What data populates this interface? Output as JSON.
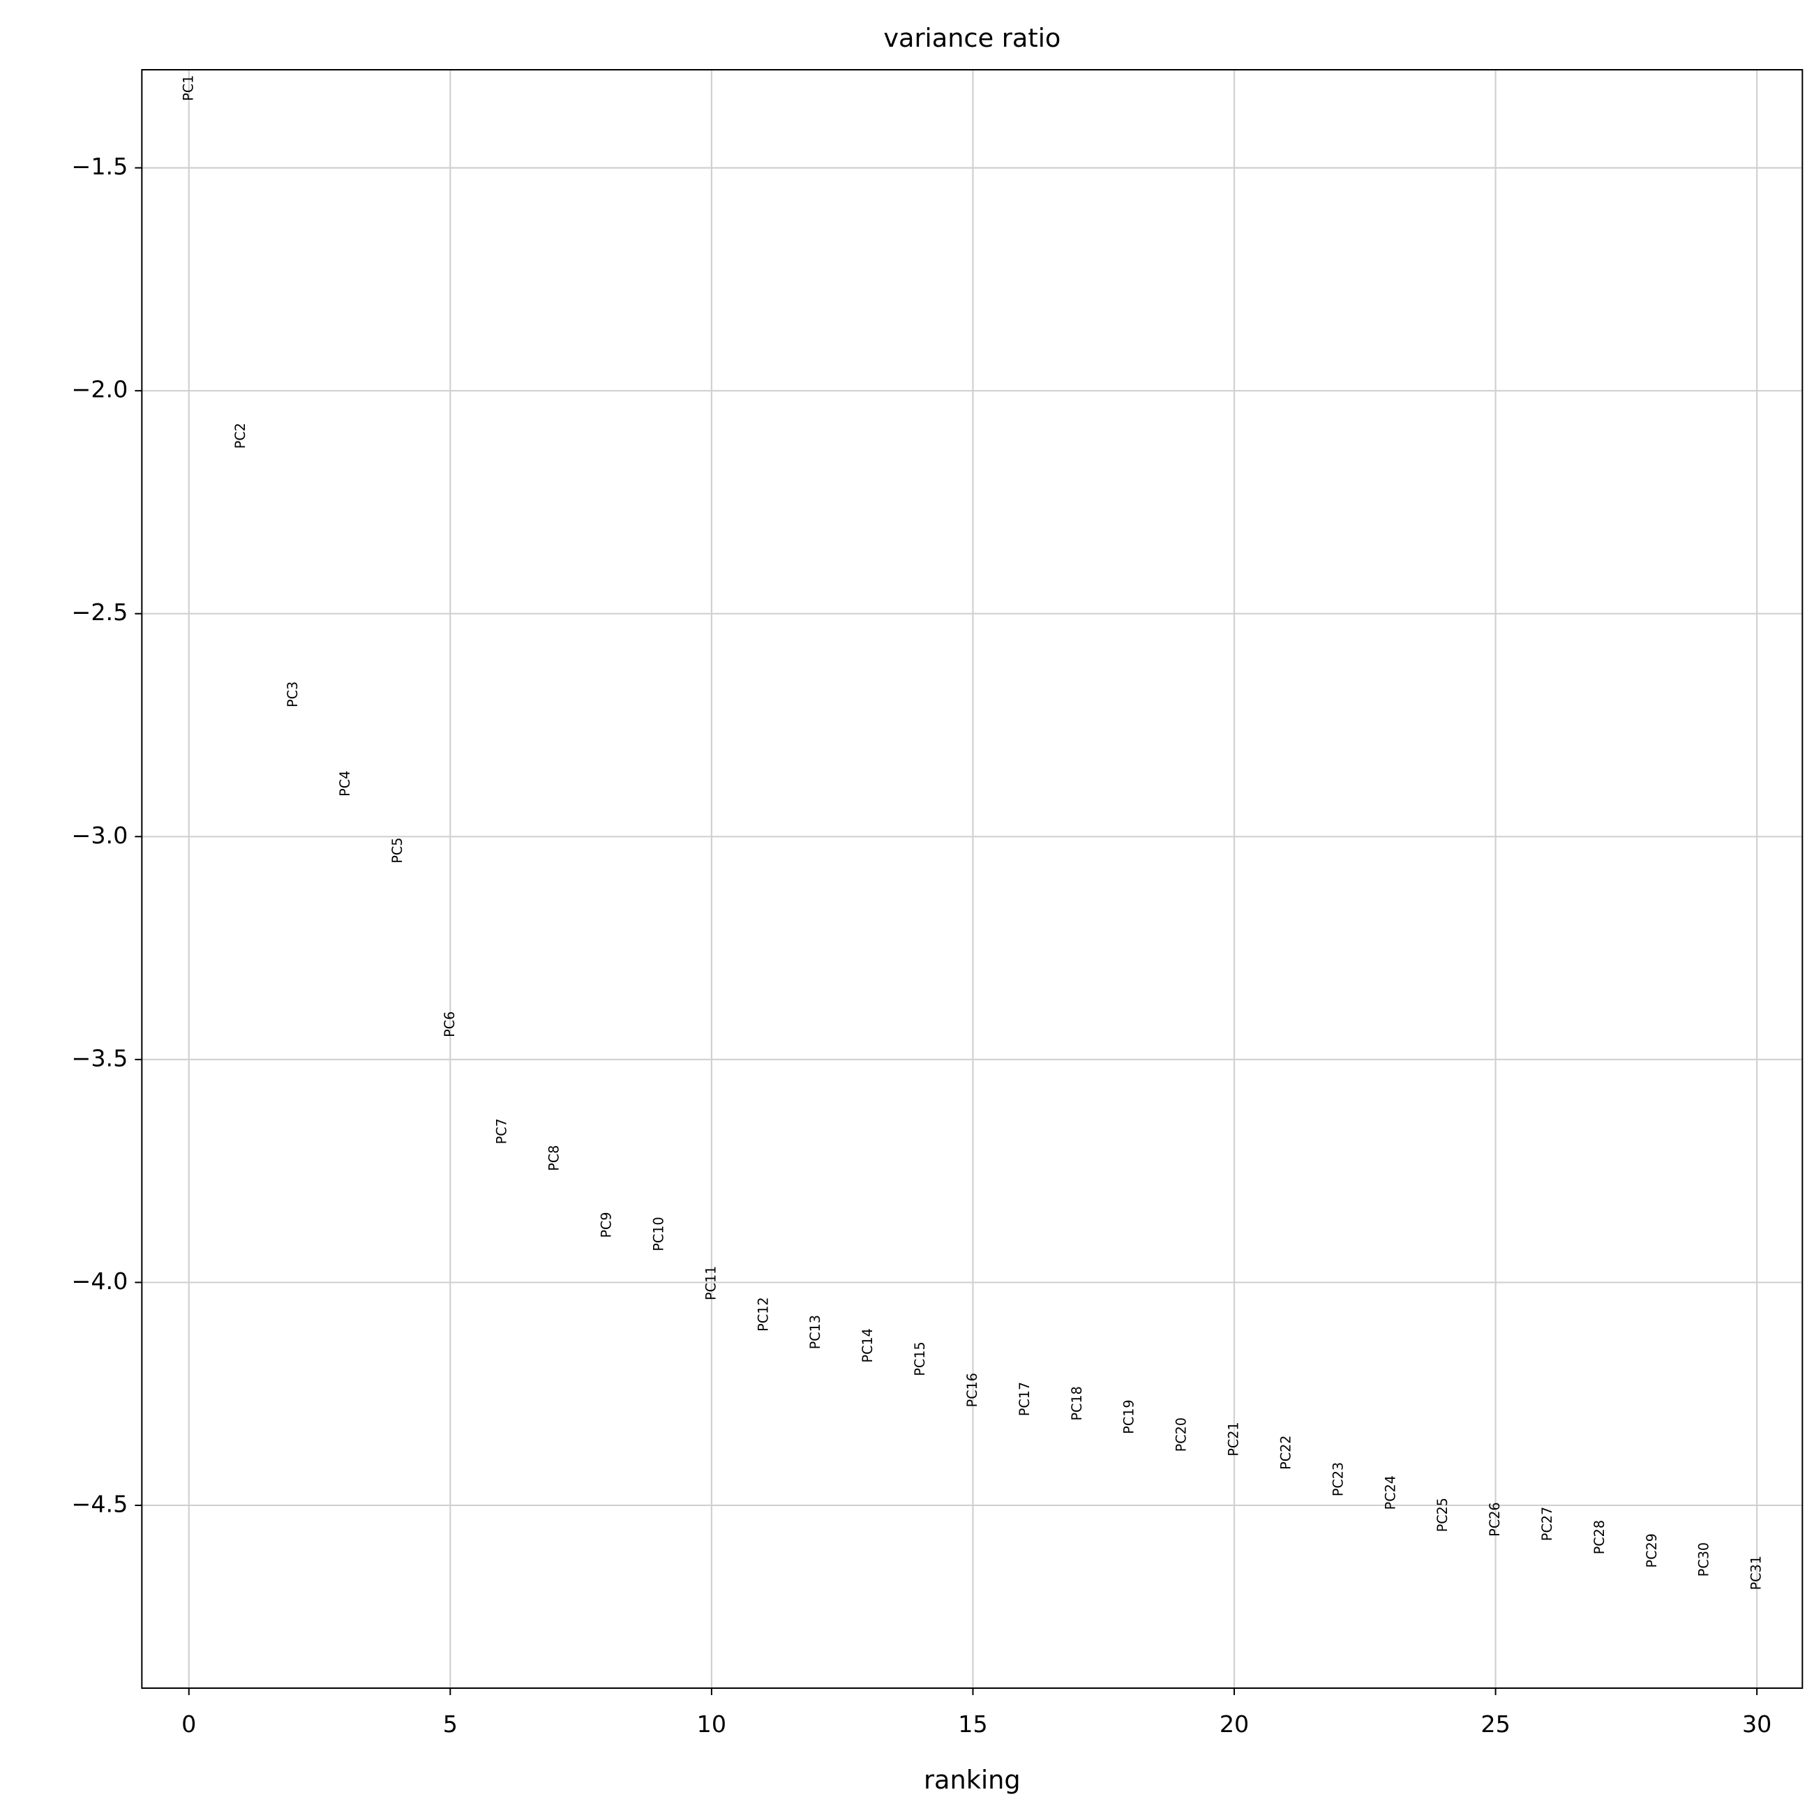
{
  "chart_data": {
    "type": "text-scatter",
    "title": "variance ratio",
    "x_label": "ranking",
    "x": [
      0,
      1,
      2,
      3,
      4,
      5,
      6,
      7,
      8,
      9,
      10,
      11,
      12,
      13,
      14,
      15,
      16,
      17,
      18,
      19,
      20,
      21,
      22,
      23,
      24,
      25,
      26,
      27,
      28,
      29,
      30
    ],
    "labels": [
      "PC1",
      "PC2",
      "PC3",
      "PC4",
      "PC5",
      "PC6",
      "PC7",
      "PC8",
      "PC9",
      "PC10",
      "PC11",
      "PC12",
      "PC13",
      "PC14",
      "PC15",
      "PC16",
      "PC17",
      "PC18",
      "PC19",
      "PC20",
      "PC21",
      "PC22",
      "PC23",
      "PC24",
      "PC25",
      "PC26",
      "PC27",
      "PC28",
      "PC29",
      "PC30",
      "PC31"
    ],
    "values": [
      -1.35,
      -2.13,
      -2.71,
      -2.91,
      -3.06,
      -3.45,
      -3.69,
      -3.75,
      -3.9,
      -3.93,
      -4.04,
      -4.11,
      -4.15,
      -4.18,
      -4.21,
      -4.28,
      -4.3,
      -4.31,
      -4.34,
      -4.38,
      -4.39,
      -4.42,
      -4.48,
      -4.51,
      -4.56,
      -4.57,
      -4.58,
      -4.61,
      -4.64,
      -4.66,
      -4.69
    ],
    "xlim": [
      -0.9,
      30.87
    ],
    "ylim": [
      -4.91,
      -1.28
    ],
    "xticks": [
      0,
      5,
      10,
      15,
      20,
      25,
      30
    ],
    "yticks": [
      {
        "value": -4.5,
        "label": "−4.5"
      },
      {
        "value": -4.0,
        "label": "−4.0"
      },
      {
        "value": -3.5,
        "label": "−3.5"
      },
      {
        "value": -3.0,
        "label": "−3.0"
      },
      {
        "value": -2.5,
        "label": "−2.5"
      },
      {
        "value": -2.0,
        "label": "−2.0"
      },
      {
        "value": -1.5,
        "label": "−1.5"
      }
    ],
    "grid": true
  }
}
